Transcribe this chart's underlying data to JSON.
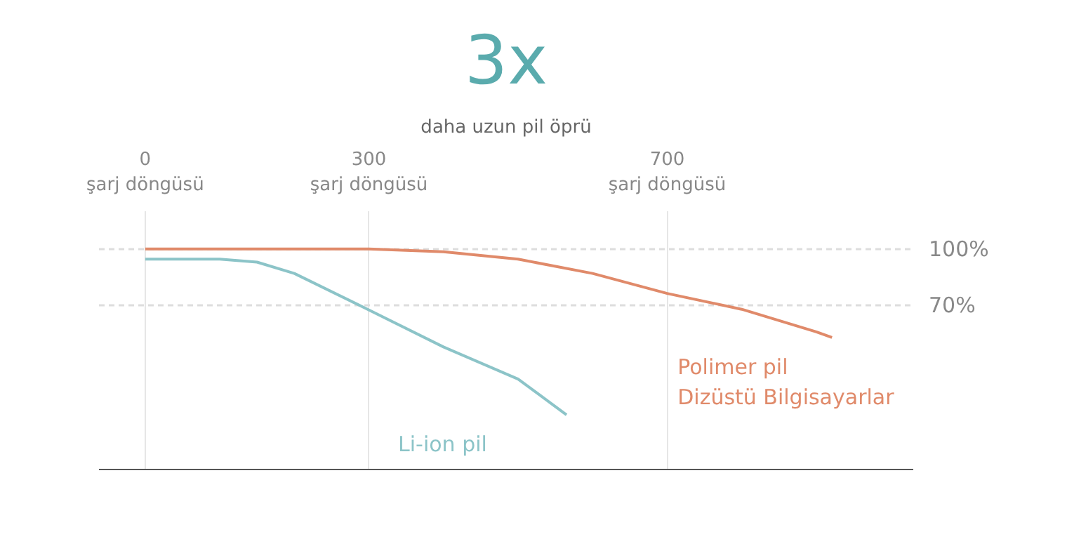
{
  "chart_data": {
    "type": "line",
    "title": "3x",
    "subtitle": "daha uzun pil öprü",
    "xlim": [
      -62,
      1030
    ],
    "ylim": [
      -17,
      120
    ],
    "xticks": [
      {
        "value": 0,
        "label": "0\nşarj döngüsü"
      },
      {
        "value": 300,
        "label": "300\nşarj döngüsü"
      },
      {
        "value": 700,
        "label": "700\nşarj döngüsü"
      }
    ],
    "yticks": [
      {
        "value": 100,
        "label": "100%"
      },
      {
        "value": 70,
        "label": "70%"
      }
    ],
    "grid": true,
    "line_style": "solid",
    "series": [
      {
        "name": "Li-ion pil",
        "color": "#8cc4c8",
        "x": [
          0,
          100,
          150,
          200,
          293,
          400,
          500,
          565
        ],
        "values": [
          94.6,
          94.6,
          93,
          87,
          69,
          48,
          31,
          12
        ]
      },
      {
        "name": "Polimer pil\nDizüstü Bilgisayarlar",
        "color": "#e08a6a",
        "x": [
          0,
          300,
          400,
          500,
          600,
          700,
          800,
          900,
          921
        ],
        "values": [
          100,
          100,
          98.5,
          94.6,
          87,
          76.4,
          68,
          56,
          53
        ]
      }
    ]
  }
}
